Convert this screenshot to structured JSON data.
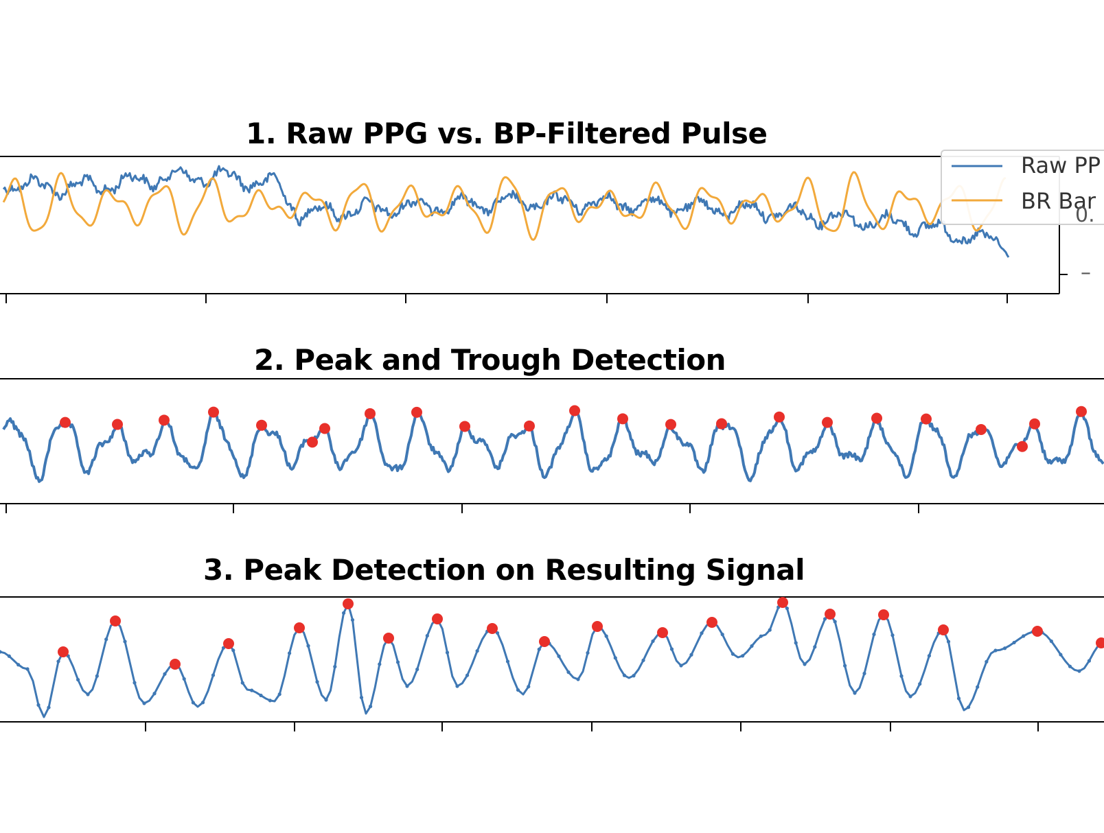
{
  "chart_data": [
    {
      "type": "line",
      "title": "1. Raw PPG vs. BP-Filtered Pulse",
      "legend": {
        "placement": "top-right",
        "entries": [
          "Raw PP",
          "BR Bar"
        ]
      },
      "tick_fragments": [
        "0.",
        "–"
      ],
      "x_ticks": 6,
      "series": [
        {
          "name": "Raw PP",
          "color": "#3f78b4"
        },
        {
          "name": "BR Bar",
          "color": "#f2a93b"
        }
      ],
      "grid": false
    },
    {
      "type": "line",
      "title": "2. Peak and Trough Detection",
      "x_ticks": 5,
      "series": [
        {
          "color": "#3f78b4",
          "markers": "red peaks and troughs"
        }
      ],
      "grid": false
    },
    {
      "type": "line",
      "title": "3. Peak Detection on Resulting Signal",
      "x_ticks": 7,
      "series": [
        {
          "color": "#3f78b4",
          "markers": "red peaks"
        }
      ],
      "grid": false
    }
  ],
  "colors": {
    "blue": "#3f78b4",
    "orange": "#f2a93b",
    "red": "#e8302a"
  }
}
